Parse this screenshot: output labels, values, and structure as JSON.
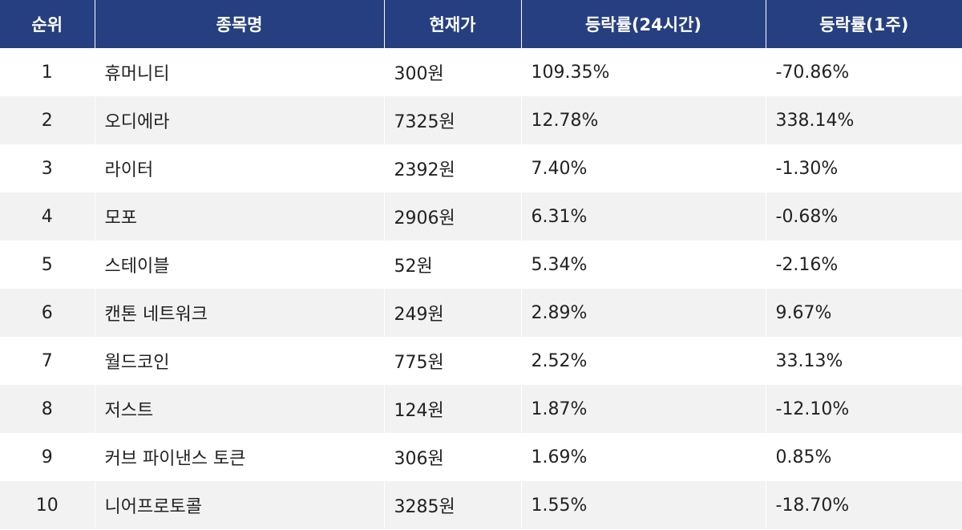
{
  "table": {
    "header": [
      "순위",
      "종목명",
      "현재가",
      "등락률(24시간)",
      "등락률(1주)"
    ],
    "rows": [
      [
        "1",
        "휴머니티",
        "300원",
        "109.35%",
        "-70.86%"
      ],
      [
        "2",
        "오디에라",
        "7325원",
        "12.78%",
        "338.14%"
      ],
      [
        "3",
        "라이터",
        "2392원",
        "7.40%",
        "-1.30%"
      ],
      [
        "4",
        "모포",
        "2906원",
        "6.31%",
        "-0.68%"
      ],
      [
        "5",
        "스테이블",
        "52원",
        "5.34%",
        "-2.16%"
      ],
      [
        "6",
        "캔톤 네트워크",
        "249원",
        "2.89%",
        "9.67%"
      ],
      [
        "7",
        "월드코인",
        "775원",
        "2.52%",
        "33.13%"
      ],
      [
        "8",
        "저스트",
        "124원",
        "1.87%",
        "-12.10%"
      ],
      [
        "9",
        "커브 파이낸스 토큰",
        "306원",
        "1.69%",
        "0.85%"
      ],
      [
        "10",
        "니어프로토콜",
        "3285원",
        "1.55%",
        "-18.70%"
      ]
    ]
  }
}
